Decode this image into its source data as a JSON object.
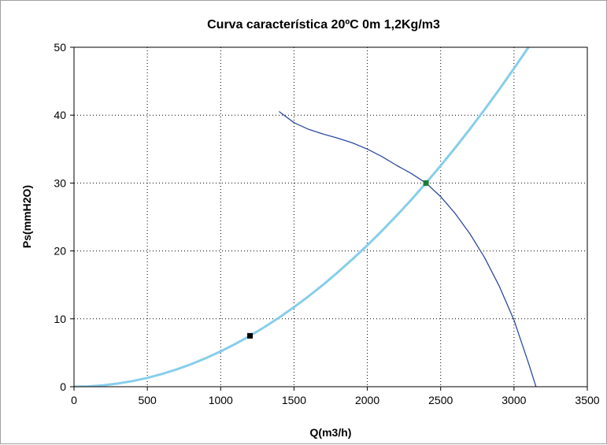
{
  "chart_data": {
    "type": "line",
    "title": "Curva característica 20ºC 0m 1,2Kg/m3",
    "xlabel": "Q(m3/h)",
    "ylabel": "Ps(mmH2O)",
    "xlim": [
      0,
      3500
    ],
    "ylim": [
      0,
      50
    ],
    "x_ticks": [
      "0",
      "500",
      "1000",
      "1500",
      "2000",
      "2500",
      "3000",
      "3500"
    ],
    "y_ticks": [
      "0",
      "10",
      "20",
      "30",
      "40",
      "50"
    ],
    "grid": true,
    "legend": "none",
    "series": [
      {
        "kind": "system-curve",
        "color": "#87ceeb",
        "x": [
          0,
          100,
          200,
          300,
          400,
          500,
          600,
          700,
          800,
          900,
          1000,
          1100,
          1200,
          1300,
          1400,
          1500,
          1600,
          1700,
          1800,
          1900,
          2000,
          2100,
          2200,
          2300,
          2400,
          2500,
          2600,
          2700,
          2800,
          2900,
          3000,
          3100,
          3150
        ],
        "y": [
          0,
          0.05,
          0.21,
          0.47,
          0.83,
          1.3,
          1.88,
          2.55,
          3.33,
          4.22,
          5.21,
          6.3,
          7.5,
          8.8,
          10.21,
          11.72,
          13.33,
          15.05,
          16.88,
          18.8,
          20.83,
          22.97,
          25.21,
          27.55,
          30.0,
          32.55,
          35.21,
          37.97,
          40.83,
          43.8,
          46.88,
          50.05,
          51.68
        ]
      },
      {
        "kind": "fan-curve",
        "color": "#2e4a9e",
        "x": [
          1400,
          1500,
          1600,
          1700,
          1800,
          1900,
          2000,
          2100,
          2200,
          2300,
          2400,
          2500,
          2600,
          2700,
          2800,
          2900,
          3000,
          3050,
          3100,
          3150
        ],
        "y": [
          40.5,
          38.9,
          37.9,
          37.2,
          36.6,
          35.9,
          35.0,
          33.9,
          32.6,
          31.4,
          30.0,
          28.0,
          25.5,
          22.5,
          19.0,
          14.8,
          9.8,
          6.6,
          3.4,
          0
        ]
      }
    ],
    "points": [
      {
        "x": 1200,
        "y": 7.5,
        "color": "#000000"
      },
      {
        "x": 2400,
        "y": 30,
        "color": "#1f7a3a"
      }
    ]
  }
}
